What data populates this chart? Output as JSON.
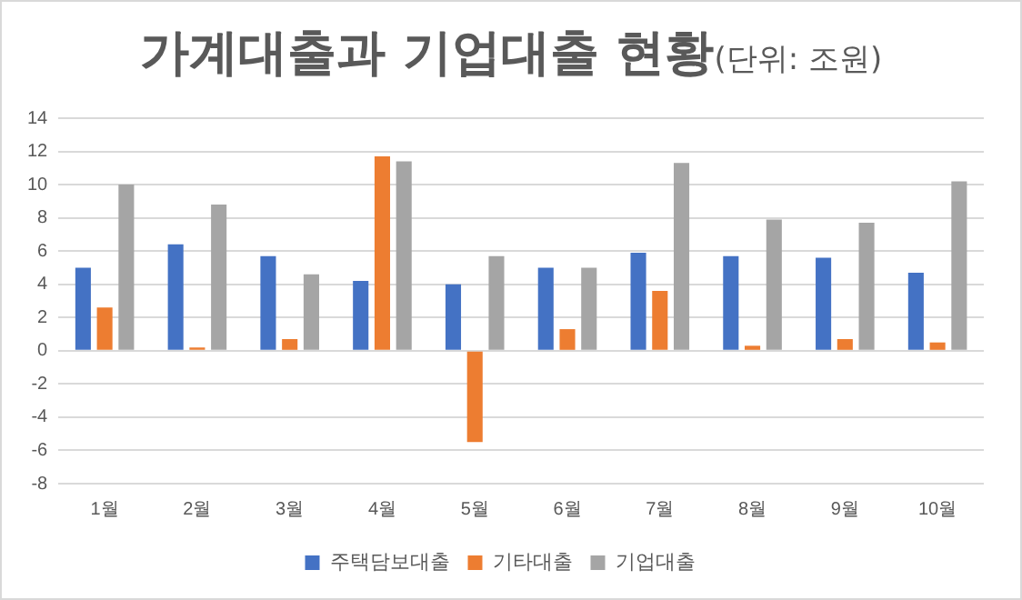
{
  "chart_data": {
    "type": "bar",
    "title": "가계대출과 기업대출 현황",
    "subtitle": "(단위: 조원)",
    "categories": [
      "1월",
      "2월",
      "3월",
      "4월",
      "5월",
      "6월",
      "7월",
      "8월",
      "9월",
      "10월"
    ],
    "series": [
      {
        "name": "주택담보대출",
        "color": "#4472c4",
        "values": [
          5.0,
          6.4,
          5.7,
          4.2,
          4.0,
          5.0,
          5.9,
          5.7,
          5.6,
          4.7
        ]
      },
      {
        "name": "기타대출",
        "color": "#ed7d31",
        "values": [
          2.6,
          0.2,
          0.7,
          11.7,
          -5.5,
          1.3,
          3.6,
          0.3,
          0.7,
          0.5
        ]
      },
      {
        "name": "기업대출",
        "color": "#a5a5a5",
        "values": [
          10.0,
          8.8,
          4.6,
          11.4,
          5.7,
          5.0,
          11.3,
          7.9,
          7.7,
          10.2
        ]
      }
    ],
    "ylim": [
      -8,
      14
    ],
    "yticks": [
      -8,
      -6,
      -4,
      -2,
      0,
      2,
      4,
      6,
      8,
      10,
      12,
      14
    ],
    "grid": "y",
    "legend": "bottom"
  }
}
